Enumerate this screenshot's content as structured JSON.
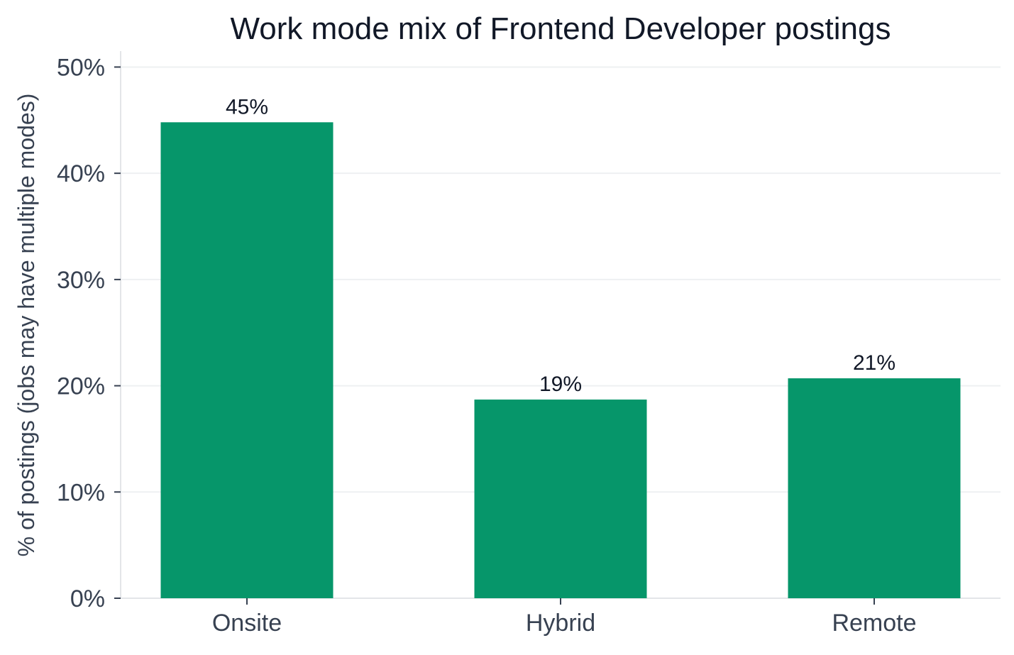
{
  "colors": {
    "bar": "#06966A",
    "grid": "#EEF0F2",
    "axis": "#E3E5E8",
    "tick": "#374151",
    "title": "#111827"
  },
  "chart_data": {
    "type": "bar",
    "title": "Work mode mix of Frontend Developer postings",
    "xlabel": "",
    "ylabel": "% of postings (jobs may have multiple modes)",
    "categories": [
      "Onsite",
      "Hybrid",
      "Remote"
    ],
    "values": [
      44.8,
      18.7,
      20.7
    ],
    "value_labels": [
      "45%",
      "19%",
      "21%"
    ],
    "ylim": [
      0,
      51.5
    ],
    "yticks": [
      0,
      10,
      20,
      30,
      40,
      50
    ],
    "ytick_labels": [
      "0%",
      "10%",
      "20%",
      "30%",
      "40%",
      "50%"
    ],
    "grid": true,
    "legend": "none"
  }
}
